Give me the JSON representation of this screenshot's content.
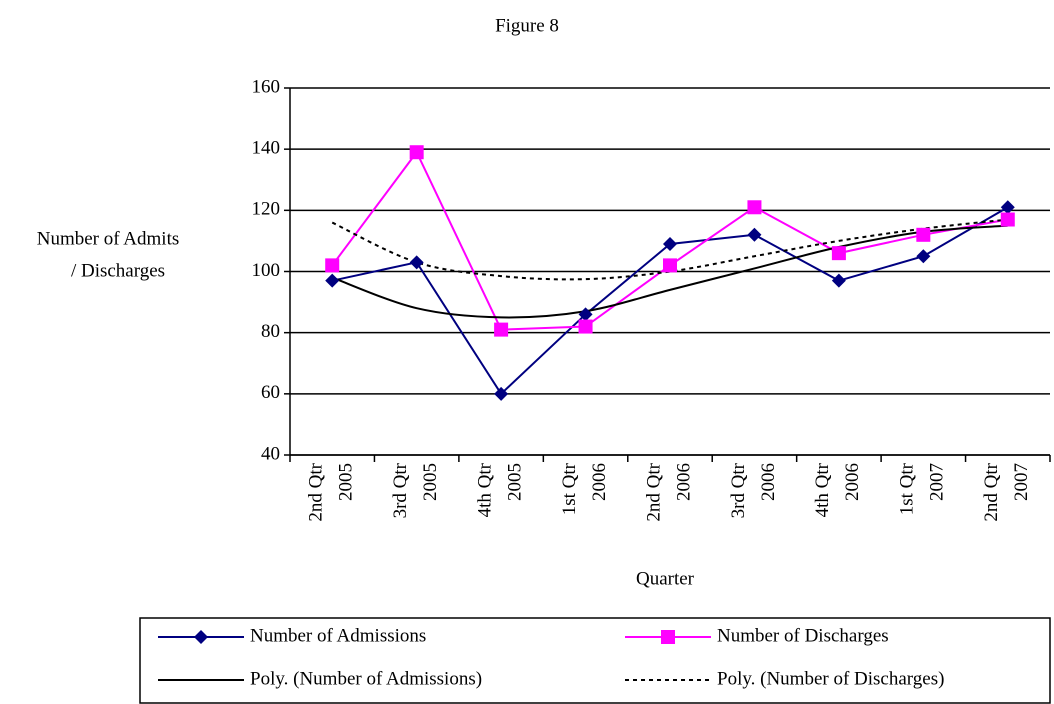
{
  "chart_data": {
    "type": "line",
    "title": "Figure 8",
    "x_label": "Quarter",
    "y_label": [
      "Number of Admits",
      "/ Discharges"
    ],
    "categories": [
      [
        "2nd Qtr",
        "2005"
      ],
      [
        "3rd Qtr",
        "2005"
      ],
      [
        "4th Qtr",
        "2005"
      ],
      [
        "1st Qtr",
        "2006"
      ],
      [
        "2nd Qtr",
        "2006"
      ],
      [
        "3rd Qtr",
        "2006"
      ],
      [
        "4th Qtr",
        "2006"
      ],
      [
        "1st Qtr",
        "2007"
      ],
      [
        "2nd Qtr",
        "2007"
      ]
    ],
    "series": [
      {
        "name": "Number of Admissions",
        "color": "#000080",
        "marker": "diamond",
        "dash": "solid",
        "smooth": false,
        "values": [
          97,
          103,
          60,
          86,
          109,
          112,
          97,
          105,
          121
        ]
      },
      {
        "name": "Number of Discharges",
        "color": "#ff00ff",
        "marker": "square",
        "dash": "solid",
        "smooth": false,
        "values": [
          102,
          139,
          81,
          82,
          102,
          121,
          106,
          112,
          117
        ]
      },
      {
        "name": "Poly. (Number of Admissions)",
        "color": "#000000",
        "marker": "none",
        "dash": "solid",
        "smooth": true,
        "values": [
          98,
          88,
          85,
          87,
          94,
          101,
          108,
          113,
          115
        ]
      },
      {
        "name": "Poly. (Number of Discharges)",
        "color": "#000000",
        "marker": "none",
        "dash": "dotted",
        "smooth": true,
        "values": [
          116,
          103,
          98.5,
          97.5,
          100,
          105,
          110,
          114,
          117
        ]
      }
    ],
    "ylim": [
      40,
      160
    ],
    "yticks": [
      40,
      60,
      80,
      100,
      120,
      140,
      160
    ],
    "grid": true
  }
}
